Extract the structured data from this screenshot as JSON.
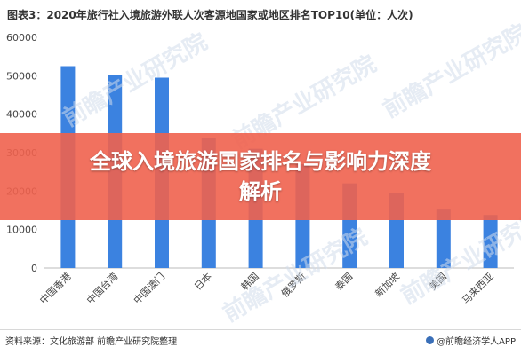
{
  "chart_data": {
    "type": "bar",
    "title": "图表3：2020年旅行社入境旅游外联人次客源地国家或地区排名TOP10(单位：人次)",
    "categories": [
      "中国香港",
      "中国台湾",
      "中国澳门",
      "日本",
      "韩国",
      "俄罗斯",
      "泰国",
      "新加坡",
      "美国",
      "马来西亚"
    ],
    "values": [
      52500,
      50200,
      49500,
      33800,
      31000,
      27000,
      22000,
      19500,
      15200,
      13800
    ],
    "ylim": [
      0,
      60000
    ],
    "yticks": [
      0,
      10000,
      20000,
      30000,
      40000,
      50000,
      60000
    ],
    "ytick_labels": [
      "0",
      "10000",
      "20000",
      "30000",
      "40000",
      "50000",
      "60000"
    ],
    "bar_color": "#3b82e0",
    "grid": false
  },
  "banner": {
    "line1": "全球入境旅游国家排名与影响力深度",
    "line2": "解析",
    "color": "#f0624e"
  },
  "footer": {
    "source": "资料来源：文化旅游部 前瞻产业研究院整理",
    "brand": "@前瞻经济学人APP"
  },
  "watermark": {
    "text": "前瞻产业研究院"
  }
}
